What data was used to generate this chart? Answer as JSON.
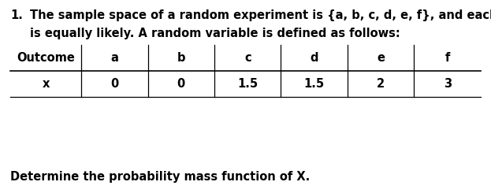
{
  "title_number": "1.",
  "line1": "The sample space of a random experiment is {a, b, c, d, e, f}, and each outcome",
  "line2": "is equally likely. A random variable is defined as follows:",
  "footer": "Determine the probability mass function of X.",
  "table_headers": [
    "Outcome",
    "a",
    "b",
    "c",
    "d",
    "e",
    "f"
  ],
  "table_row_label": "x",
  "table_row_values": [
    "0",
    "0",
    "1.5",
    "1.5",
    "2",
    "3"
  ],
  "background_color": "#ffffff",
  "text_color": "#000000",
  "font_size_body": 10.5,
  "font_size_table": 10.5,
  "font_size_footer": 10.5
}
